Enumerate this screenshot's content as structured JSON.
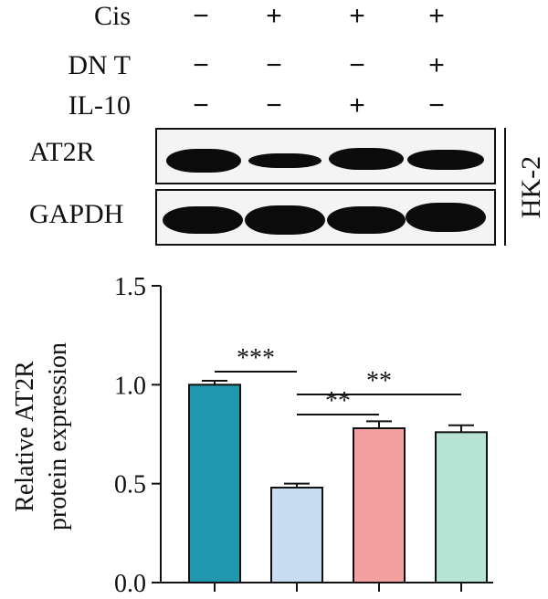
{
  "treatments": [
    {
      "name": "Cis",
      "signs": [
        "−",
        "+",
        "+",
        "+"
      ]
    },
    {
      "name": "DN T",
      "signs": [
        "−",
        "−",
        "−",
        "+"
      ]
    },
    {
      "name": "IL-10",
      "signs": [
        "−",
        "−",
        "+",
        "−"
      ]
    }
  ],
  "blot": {
    "rows": [
      "AT2R",
      "GAPDH"
    ],
    "cell_line": "HK-2",
    "band_color": "#0b0b0b"
  },
  "chart_data": {
    "type": "bar",
    "categories": [
      "",
      "",
      "",
      ""
    ],
    "values": [
      1.0,
      0.48,
      0.78,
      0.76
    ],
    "errors": [
      0.02,
      0.02,
      0.035,
      0.035
    ],
    "colors": [
      "#1f97ad",
      "#c9ddf2",
      "#f4a0a2",
      "#b7e3d4"
    ],
    "ylabel": [
      "Relative AT2R",
      "protein expression"
    ],
    "ylim": [
      0,
      1.5
    ],
    "yticks": [
      "0.0",
      "0.5",
      "1.0",
      "1.5"
    ],
    "significance": [
      {
        "from": 0,
        "to": 1,
        "label": "***"
      },
      {
        "from": 1,
        "to": 2,
        "label": "**"
      },
      {
        "from": 1,
        "to": 3,
        "label": "**"
      }
    ]
  }
}
